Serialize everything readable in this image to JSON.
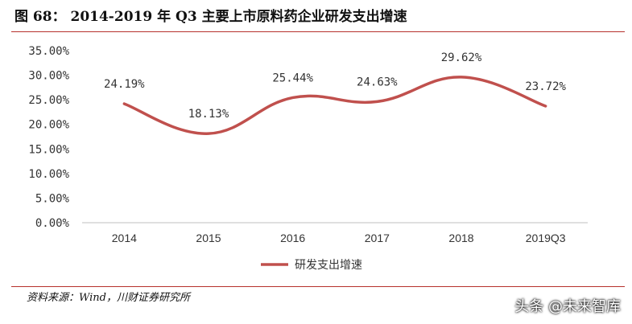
{
  "title": "图 68： 2014-2019 年 Q3 主要上市原料药企业研发支出增速",
  "source": "资料来源：Wind，川财证券研究所",
  "watermark": "头条 @未来智库",
  "colors": {
    "series": "#c0504d",
    "rule": "#b7312c",
    "axis": "#bfbfbf"
  },
  "chart_data": {
    "type": "line",
    "smooth": true,
    "categories": [
      "2014",
      "2015",
      "2016",
      "2017",
      "2018",
      "2019Q3"
    ],
    "series": [
      {
        "name": "研发支出增速",
        "values": [
          24.19,
          18.13,
          25.44,
          24.63,
          29.62,
          23.72
        ]
      }
    ],
    "data_labels": [
      "24.19%",
      "18.13%",
      "25.44%",
      "24.63%",
      "29.62%",
      "23.72%"
    ],
    "yticks": [
      "0.00%",
      "5.00%",
      "10.00%",
      "15.00%",
      "20.00%",
      "25.00%",
      "30.00%",
      "35.00%"
    ],
    "ylim": [
      0,
      35
    ],
    "grid": false,
    "legend_position": "bottom"
  }
}
